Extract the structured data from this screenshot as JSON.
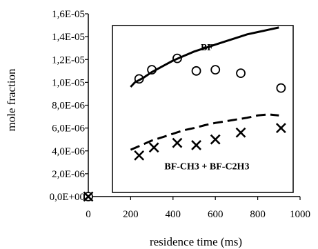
{
  "chart_data": {
    "type": "scatter",
    "title": "",
    "xlabel": "residence time (ms)",
    "ylabel": "mole fraction",
    "xlim": [
      0,
      1000
    ],
    "ylim": [
      0,
      1.6e-05
    ],
    "x_ticks": [
      "0",
      "200",
      "400",
      "600",
      "800",
      "1000"
    ],
    "y_ticks": [
      "0,0E+00",
      "2,0E-06",
      "4,0E-06",
      "6,0E-06",
      "8,0E-06",
      "1,0E-05",
      "1,2E-05",
      "1,4E-05",
      "1,6E-05"
    ],
    "grid": false,
    "legend": "none",
    "annotations": [
      {
        "text": "BF",
        "x": 560,
        "y": 1.28e-05
      },
      {
        "text": "BF-CH3 + BF-C2H3",
        "x": 560,
        "y": 2.4e-06
      }
    ],
    "series": [
      {
        "marker": "circle",
        "x": [
          0,
          240,
          300,
          420,
          510,
          600,
          720,
          910
        ],
        "y": [
          0,
          1.03e-05,
          1.11e-05,
          1.21e-05,
          1.1e-05,
          1.11e-05,
          1.08e-05,
          9.5e-06
        ]
      },
      {
        "marker": "cross",
        "x": [
          0,
          240,
          310,
          420,
          510,
          600,
          720,
          910
        ],
        "y": [
          0,
          3.6e-06,
          4.3e-06,
          4.7e-06,
          4.5e-06,
          5e-06,
          5.6e-06,
          6e-06
        ]
      },
      {
        "line": "solid",
        "x": [
          200,
          220,
          260,
          300,
          350,
          400,
          450,
          500,
          550,
          600,
          650,
          700,
          750,
          800,
          850,
          900
        ],
        "y": [
          9.6e-06,
          1e-05,
          1.04e-05,
          1.09e-05,
          1.14e-05,
          1.19e-05,
          1.23e-05,
          1.27e-05,
          1.3e-05,
          1.33e-05,
          1.36e-05,
          1.39e-05,
          1.42e-05,
          1.44e-05,
          1.46e-05,
          1.48e-05
        ]
      },
      {
        "line": "dashed",
        "x": [
          200,
          250,
          300,
          350,
          400,
          450,
          500,
          550,
          600,
          650,
          700,
          750,
          800,
          850,
          900
        ],
        "y": [
          4.1e-06,
          4.5e-06,
          4.9e-06,
          5.2e-06,
          5.5e-06,
          5.8e-06,
          6e-06,
          6.25e-06,
          6.45e-06,
          6.6e-06,
          6.75e-06,
          6.9e-06,
          7.1e-06,
          7.2e-06,
          7.1e-06
        ]
      }
    ]
  }
}
